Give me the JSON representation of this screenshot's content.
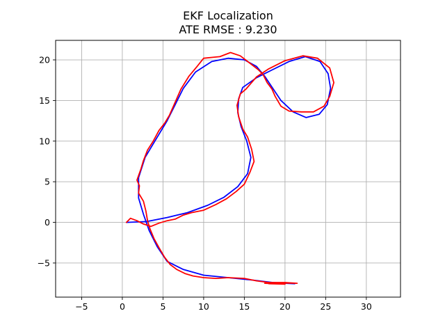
{
  "chart_data": {
    "type": "line",
    "title": "EKF Localization",
    "subtitle": "ATE RMSE : 9.230",
    "xlabel": "",
    "ylabel": "",
    "xlim": [
      -8.2,
      34.2
    ],
    "ylim": [
      -9.2,
      22.4
    ],
    "xticks": [
      -5,
      0,
      5,
      10,
      15,
      20,
      25,
      30
    ],
    "yticks": [
      -5,
      0,
      5,
      10,
      15,
      20
    ],
    "grid": true,
    "legend": "none",
    "series": [
      {
        "color": "#0000ff",
        "points": [
          [
            0.5,
            0
          ],
          [
            3,
            0.1
          ],
          [
            5.5,
            0.6
          ],
          [
            8,
            1.2
          ],
          [
            10.5,
            2.1
          ],
          [
            12.5,
            3.1
          ],
          [
            14.2,
            4.4
          ],
          [
            15.4,
            6
          ],
          [
            15.8,
            8
          ],
          [
            15.3,
            10
          ],
          [
            14.6,
            11.8
          ],
          [
            14.2,
            13.5
          ],
          [
            14.3,
            15.2
          ],
          [
            14.8,
            16.6
          ],
          [
            16.5,
            17.8
          ],
          [
            18.5,
            18.8
          ],
          [
            20.5,
            19.8
          ],
          [
            22.5,
            20.4
          ],
          [
            24.3,
            19.8
          ],
          [
            25.3,
            18.3
          ],
          [
            25.6,
            16.5
          ],
          [
            25.2,
            14.5
          ],
          [
            24.2,
            13.3
          ],
          [
            22.6,
            12.9
          ],
          [
            21,
            13.6
          ],
          [
            19.5,
            15
          ],
          [
            18.5,
            16.5
          ],
          [
            17.5,
            18
          ],
          [
            16.5,
            19.2
          ],
          [
            15,
            20
          ],
          [
            13,
            20.2
          ],
          [
            11,
            19.8
          ],
          [
            9,
            18.5
          ],
          [
            7.5,
            16.5
          ],
          [
            6.5,
            14.5
          ],
          [
            5.5,
            12.5
          ],
          [
            4,
            10
          ],
          [
            2.8,
            8
          ],
          [
            2,
            5.5
          ],
          [
            2,
            3
          ],
          [
            2.6,
            1
          ],
          [
            3.3,
            -1
          ],
          [
            4.3,
            -3
          ],
          [
            5.5,
            -4.8
          ],
          [
            7.5,
            -5.8
          ],
          [
            10,
            -6.5
          ],
          [
            13,
            -6.8
          ],
          [
            16,
            -7.1
          ],
          [
            18.5,
            -7.4
          ],
          [
            20,
            -7.5
          ],
          [
            21.2,
            -7.55
          ]
        ]
      },
      {
        "color": "#ff0000",
        "points": [
          [
            0.5,
            0
          ],
          [
            1,
            0.5
          ],
          [
            1.8,
            0.2
          ],
          [
            2.6,
            -0.2
          ],
          [
            3.5,
            -0.5
          ],
          [
            4.5,
            -0.1
          ],
          [
            5.5,
            0.2
          ],
          [
            6.5,
            0.4
          ],
          [
            7.5,
            0.9
          ],
          [
            8.5,
            1.2
          ],
          [
            10,
            1.5
          ],
          [
            11.5,
            2.2
          ],
          [
            12.8,
            2.9
          ],
          [
            14,
            3.8
          ],
          [
            15,
            4.7
          ],
          [
            15.7,
            6.2
          ],
          [
            16.2,
            7.5
          ],
          [
            15.9,
            9
          ],
          [
            15.4,
            10.5
          ],
          [
            14.8,
            11.5
          ],
          [
            14.3,
            13
          ],
          [
            14.1,
            14.4
          ],
          [
            14.5,
            15.8
          ],
          [
            15.2,
            16.4
          ],
          [
            16.5,
            17.9
          ],
          [
            18,
            18.9
          ],
          [
            20,
            19.9
          ],
          [
            22.2,
            20.5
          ],
          [
            24,
            20.2
          ],
          [
            25.5,
            19
          ],
          [
            26,
            17.2
          ],
          [
            25.5,
            15.5
          ],
          [
            24.8,
            14.3
          ],
          [
            23.5,
            13.6
          ],
          [
            22,
            13.6
          ],
          [
            20.5,
            13.7
          ],
          [
            19.5,
            14.3
          ],
          [
            18.8,
            15.5
          ],
          [
            18.4,
            16.4
          ],
          [
            17.8,
            17.2
          ],
          [
            17.3,
            18.2
          ],
          [
            16.7,
            18.8
          ],
          [
            15.8,
            19.5
          ],
          [
            14.5,
            20.5
          ],
          [
            13.3,
            20.9
          ],
          [
            12,
            20.4
          ],
          [
            11,
            20.3
          ],
          [
            10,
            20.2
          ],
          [
            9.2,
            19.2
          ],
          [
            8.2,
            18
          ],
          [
            7.2,
            16.4
          ],
          [
            6.5,
            14.8
          ],
          [
            5.8,
            13.2
          ],
          [
            5.2,
            12.2
          ],
          [
            4.5,
            11.3
          ],
          [
            3.8,
            10
          ],
          [
            3.1,
            8.9
          ],
          [
            2.6,
            7.6
          ],
          [
            2.3,
            6.6
          ],
          [
            1.8,
            5.2
          ],
          [
            2.1,
            4.5
          ],
          [
            2,
            3.6
          ],
          [
            2.6,
            2.6
          ],
          [
            2.9,
            1.4
          ],
          [
            3.1,
            0.2
          ],
          [
            3.4,
            -0.8
          ],
          [
            3.9,
            -2
          ],
          [
            4.5,
            -3.1
          ],
          [
            5.2,
            -4.3
          ],
          [
            5.9,
            -5.2
          ],
          [
            6.7,
            -5.8
          ],
          [
            7.7,
            -6.3
          ],
          [
            8.7,
            -6.6
          ],
          [
            10,
            -6.8
          ],
          [
            11.5,
            -6.9
          ],
          [
            13,
            -6.8
          ],
          [
            15,
            -6.9
          ],
          [
            16.5,
            -7.2
          ],
          [
            18,
            -7.4
          ],
          [
            20,
            -7.4
          ],
          [
            21.5,
            -7.5
          ],
          [
            19.5,
            -7.45
          ],
          [
            18,
            -7.55
          ],
          [
            20,
            -7.6
          ],
          [
            17.5,
            -7.5
          ]
        ]
      }
    ]
  }
}
